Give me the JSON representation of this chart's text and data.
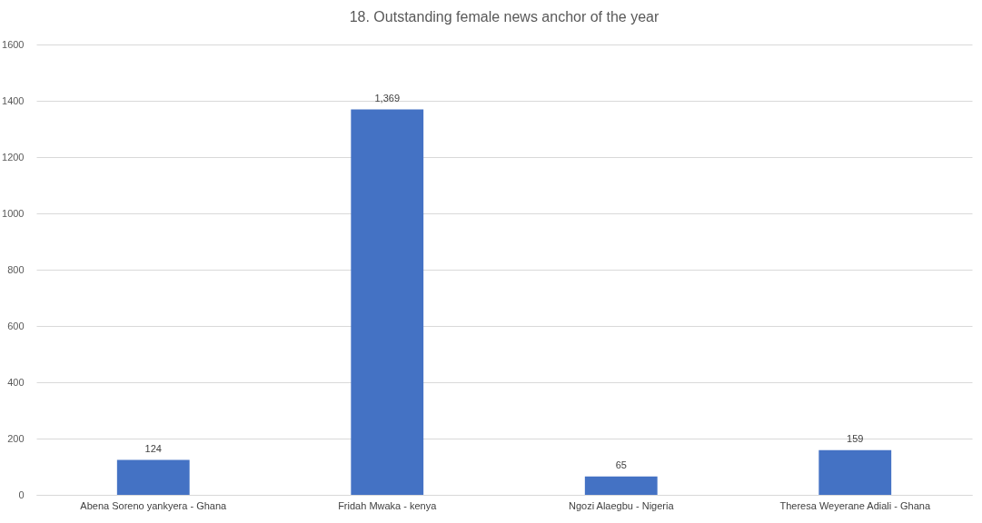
{
  "chart_data": {
    "type": "bar",
    "title": "18. Outstanding female news anchor of the year",
    "categories": [
      "Abena Soreno yankyera - Ghana",
      "Fridah Mwaka - kenya",
      "Ngozi Alaegbu - Nigeria",
      "Theresa Weyerane Adiali - Ghana"
    ],
    "values": [
      124,
      1369,
      65,
      159
    ],
    "color": "#4472c4",
    "ylim": [
      0,
      1600
    ],
    "yticks": [
      0,
      200,
      400,
      600,
      800,
      1000,
      1200,
      1400,
      1600
    ],
    "grid": true,
    "value_labels": [
      "124",
      "1,369",
      "65",
      "159"
    ]
  }
}
